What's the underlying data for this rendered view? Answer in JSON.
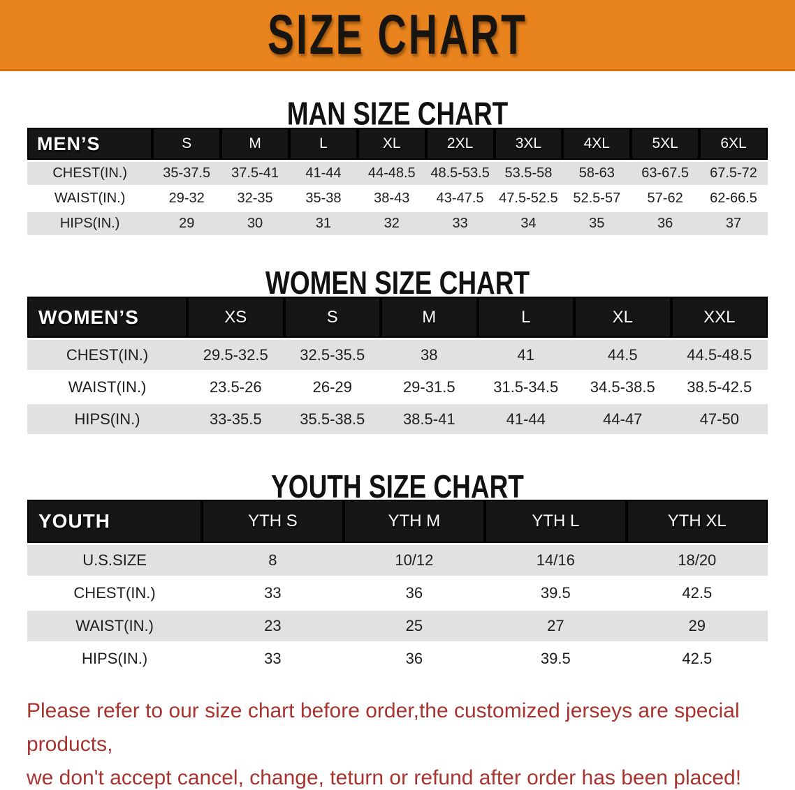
{
  "banner": {
    "title": "SIZE CHART",
    "bg_color": "#E8831E"
  },
  "sections": [
    {
      "heading": "MAN SIZE CHART",
      "table": {
        "header": [
          "MEN’S",
          "S",
          "M",
          "L",
          "XL",
          "2XL",
          "3XL",
          "4XL",
          "5XL",
          "6XL"
        ],
        "rows": [
          {
            "label": "CHEST(IN.)",
            "values": [
              "35-37.5",
              "37.5-41",
              "41-44",
              "44-48.5",
              "48.5-53.5",
              "53.5-58",
              "58-63",
              "63-67.5",
              "67.5-72"
            ]
          },
          {
            "label": "WAIST(IN.)",
            "values": [
              "29-32",
              "32-35",
              "35-38",
              "38-43",
              "43-47.5",
              "47.5-52.5",
              "52.5-57",
              "57-62",
              "62-66.5"
            ]
          },
          {
            "label": "HIPS(IN.)",
            "values": [
              "29",
              "30",
              "31",
              "32",
              "33",
              "34",
              "35",
              "36",
              "37"
            ]
          }
        ]
      }
    },
    {
      "heading": "WOMEN SIZE CHART",
      "table": {
        "header": [
          "WOMEN’S",
          "XS",
          "S",
          "M",
          "L",
          "XL",
          "XXL"
        ],
        "rows": [
          {
            "label": "CHEST(IN.)",
            "values": [
              "29.5-32.5",
              "32.5-35.5",
              "38",
              "41",
              "44.5",
              "44.5-48.5"
            ]
          },
          {
            "label": "WAIST(IN.)",
            "values": [
              "23.5-26",
              "26-29",
              "29-31.5",
              "31.5-34.5",
              "34.5-38.5",
              "38.5-42.5"
            ]
          },
          {
            "label": "HIPS(IN.)",
            "values": [
              "33-35.5",
              "35.5-38.5",
              "38.5-41",
              "41-44",
              "44-47",
              "47-50"
            ]
          }
        ]
      }
    },
    {
      "heading": "YOUTH SIZE CHART",
      "table": {
        "header": [
          "YOUTH",
          "YTH S",
          "YTH M",
          "YTH L",
          "YTH XL"
        ],
        "rows": [
          {
            "label": "U.S.SIZE",
            "values": [
              "8",
              "10/12",
              "14/16",
              "18/20"
            ]
          },
          {
            "label": "CHEST(IN.)",
            "values": [
              "33",
              "36",
              "39.5",
              "42.5"
            ]
          },
          {
            "label": "WAIST(IN.)",
            "values": [
              "23",
              "25",
              "27",
              "29"
            ]
          },
          {
            "label": "HIPS(IN.)",
            "values": [
              "33",
              "36",
              "39.5",
              "42.5"
            ]
          }
        ]
      }
    }
  ],
  "footer": {
    "line1": "Please refer to our size chart before order,the customized jerseys are special products,",
    "line2": "we don't accept cancel, change, teturn or refund after order has been placed!"
  }
}
